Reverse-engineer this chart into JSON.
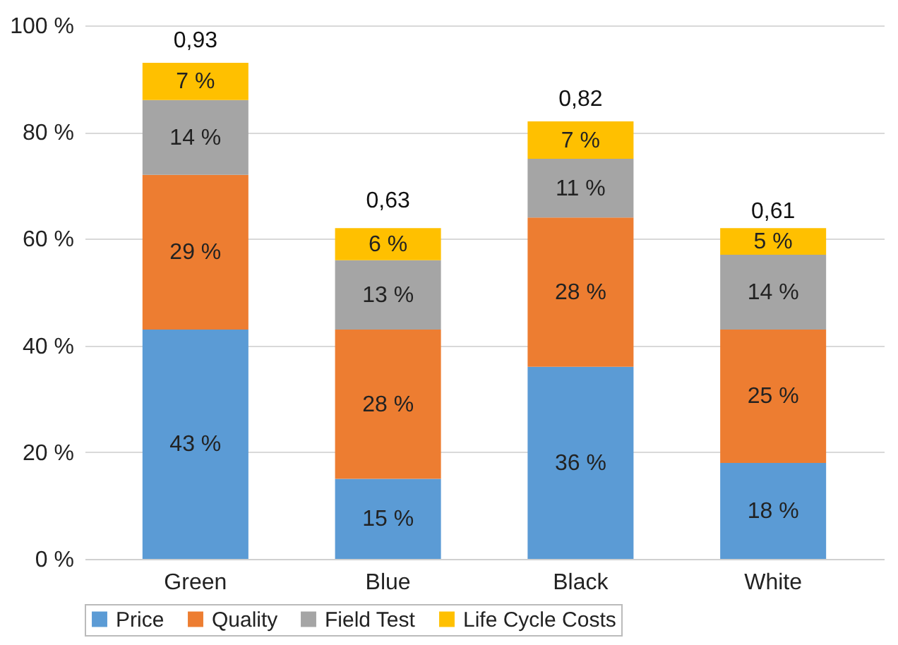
{
  "chart_data": {
    "type": "bar",
    "stacked": true,
    "categories": [
      "Green",
      "Blue",
      "Black",
      "White"
    ],
    "series": [
      {
        "name": "Price",
        "color": "#5b9bd5",
        "values": [
          43,
          15,
          36,
          18
        ],
        "value_labels": [
          "43 %",
          "15 %",
          "36 %",
          "18 %"
        ]
      },
      {
        "name": "Quality",
        "color": "#ed7d31",
        "values": [
          29,
          28,
          28,
          25
        ],
        "value_labels": [
          "29 %",
          "28 %",
          "28 %",
          "25 %"
        ]
      },
      {
        "name": "Field Test",
        "color": "#a5a5a5",
        "values": [
          14,
          13,
          11,
          14
        ],
        "value_labels": [
          "14 %",
          "13 %",
          "11 %",
          "14 %"
        ]
      },
      {
        "name": "Life Cycle Costs",
        "color": "#ffc000",
        "values": [
          7,
          6,
          7,
          5
        ],
        "value_labels": [
          "7 %",
          "6 %",
          "7 %",
          "5 %"
        ]
      }
    ],
    "annotations": [
      {
        "text": "0,93",
        "x": "Green",
        "y": 93
      },
      {
        "text": "0,63",
        "x": "Blue",
        "y": 63
      },
      {
        "text": "0,82",
        "x": "Black",
        "y": 82
      },
      {
        "text": "0,61",
        "x": "White",
        "y": 61
      }
    ],
    "ylim": [
      0,
      100
    ],
    "yticks": [
      {
        "value": 0,
        "label": "0 %"
      },
      {
        "value": 20,
        "label": "20 %"
      },
      {
        "value": 40,
        "label": "40 %"
      },
      {
        "value": 60,
        "label": "60 %"
      },
      {
        "value": 80,
        "label": "80 %"
      },
      {
        "value": 100,
        "label": "100 %"
      }
    ],
    "grid": "y",
    "legend": "bottom"
  }
}
